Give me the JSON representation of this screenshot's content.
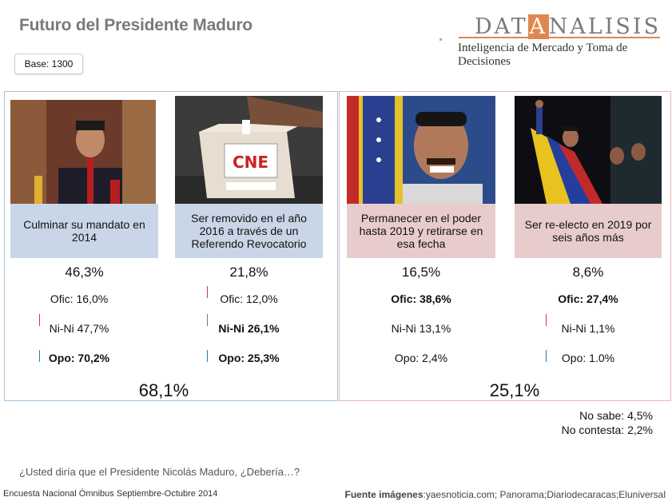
{
  "header": {
    "title": "Futuro del Presidente Maduro",
    "base": "Base: 1300",
    "logo_pre": "DAT",
    "logo_a": "A",
    "logo_post": "NALISIS",
    "logo_tagline": "Inteligencia de Mercado y Toma de Decisiones"
  },
  "chart_data": {
    "type": "table",
    "question": "¿Usted diría que el Presidente Nicolás Maduro, ¿Debería…?",
    "groups": [
      {
        "total": "68,1%",
        "options": [
          {
            "label": "Culminar su mandato en 2014",
            "value": "46,3%",
            "ofic": "Ofic: 16,0%",
            "nini": "Ni-Ni 47,7%",
            "opo": "Opo: 70,2%",
            "bold": [
              "opo"
            ]
          },
          {
            "label": "Ser removido en el año 2016 a través de un Referendo Revocatorio",
            "value": "21,8%",
            "ofic": "Ofic: 12,0%",
            "nini": "Ni-Ni 26,1%",
            "opo": "Opo: 25,3%",
            "bold": [
              "nini",
              "opo"
            ]
          }
        ]
      },
      {
        "total": "25,1%",
        "options": [
          {
            "label": "Permanecer en el poder hasta 2019 y retirarse en esa fecha",
            "value": "16,5%",
            "ofic": "Ofic: 38,6%",
            "nini": "Ni-Ni 13,1%",
            "opo": "Opo: 2,4%",
            "bold": [
              "ofic"
            ]
          },
          {
            "label": "Ser re-electo en 2019 por seis años más",
            "value": "8,6%",
            "ofic": "Ofic: 27,4%",
            "nini": "Ni-Ni 1,1%",
            "opo": "Opo: 1.0%",
            "bold": [
              "ofic"
            ]
          }
        ]
      }
    ],
    "no_sabe": "No sabe: 4,5%",
    "no_contesta": "No contesta: 2,2%"
  },
  "footer": {
    "survey": "Encuesta Nacional Ómnibus Septiembre-Octubre 2014",
    "source_label": "Fuente imágenes",
    "source_text": ":yaesnoticia.com; Panorama;Diariodecaracas;Eluniversal"
  },
  "photos": [
    "maduro-podium-photo",
    "ballot-box-cne-photo",
    "maduro-smiling-flag-photo",
    "maduro-celebrating-photo"
  ],
  "colors": {
    "blue_box": "#c9d6e7",
    "pink_box": "#e8cccc",
    "left_border": "#9fc3de",
    "right_border": "#e6b6b9",
    "brand_orange": "#e0874e"
  }
}
